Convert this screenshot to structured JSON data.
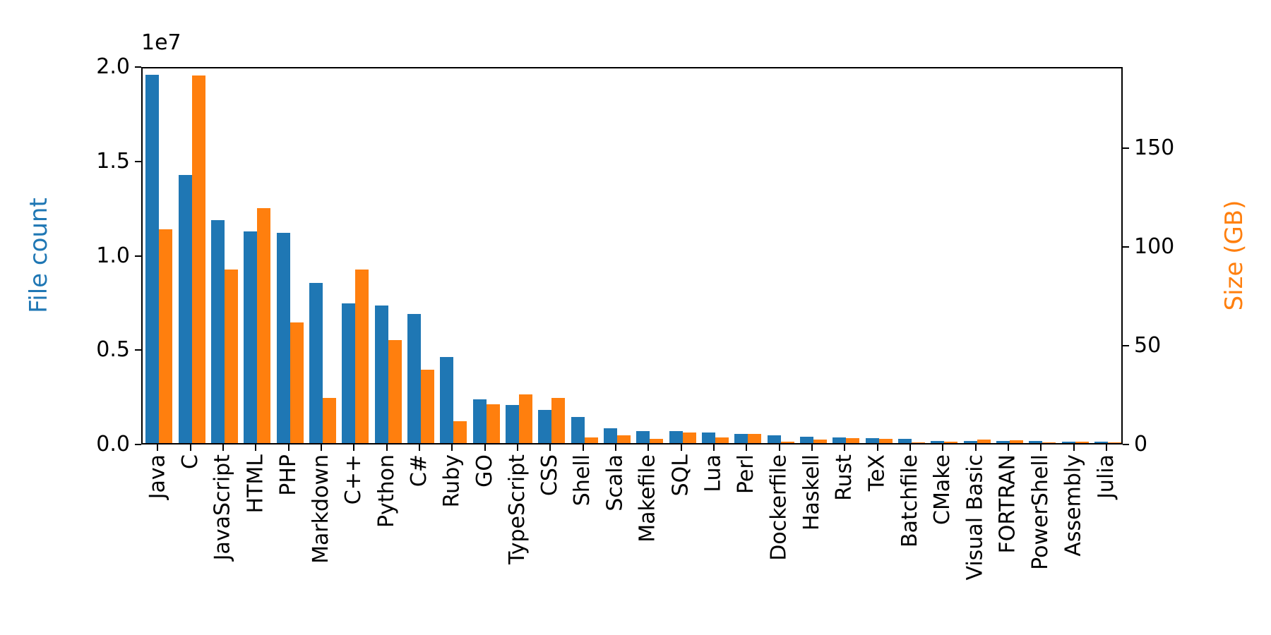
{
  "chart_data": {
    "type": "bar",
    "title": "",
    "grid": false,
    "legend": "none",
    "categories": [
      "Java",
      "C",
      "JavaScript",
      "HTML",
      "PHP",
      "Markdown",
      "C++",
      "Python",
      "C#",
      "Ruby",
      "GO",
      "TypeScript",
      "CSS",
      "Shell",
      "Scala",
      "Makefile",
      "SQL",
      "Lua",
      "Perl",
      "Dockerfile",
      "Haskell",
      "Rust",
      "TeX",
      "Batchfile",
      "CMake",
      "Visual Basic",
      "FORTRAN",
      "PowerShell",
      "Assembly",
      "Julia"
    ],
    "series": [
      {
        "name": "File count",
        "axis": "left",
        "color": "#1f77b4",
        "values": [
          19500000,
          14200000,
          11800000,
          11200000,
          11150000,
          8500000,
          7400000,
          7300000,
          6850000,
          4550000,
          2300000,
          2000000,
          1750000,
          1400000,
          800000,
          650000,
          620000,
          550000,
          500000,
          400000,
          320000,
          300000,
          250000,
          220000,
          120000,
          120000,
          100000,
          120000,
          60000,
          60000
        ]
      },
      {
        "name": "Size (GB)",
        "axis": "right",
        "color": "#ff7f0e",
        "values": [
          108,
          186,
          88,
          119,
          61,
          23,
          88,
          52,
          37,
          11,
          19.5,
          24.5,
          23,
          3,
          4,
          2.2,
          5.5,
          2.8,
          4.5,
          0.6,
          1.8,
          2.5,
          2.2,
          0.4,
          0.6,
          1.8,
          1.6,
          0.5,
          0.6,
          0.3
        ]
      }
    ],
    "left_axis": {
      "label": "File count",
      "color": "#1f77b4",
      "offset_text": "1e7",
      "tick_labels": [
        "0.0",
        "0.5",
        "1.0",
        "1.5",
        "2.0"
      ],
      "tick_values": [
        0,
        5000000,
        10000000,
        15000000,
        20000000
      ],
      "lim": [
        0,
        20000000
      ]
    },
    "right_axis": {
      "label": "Size (GB)",
      "color": "#ff7f0e",
      "tick_labels": [
        "0",
        "50",
        "100",
        "150"
      ],
      "tick_values": [
        0,
        50,
        100,
        150
      ],
      "lim": [
        0,
        191
      ]
    }
  }
}
